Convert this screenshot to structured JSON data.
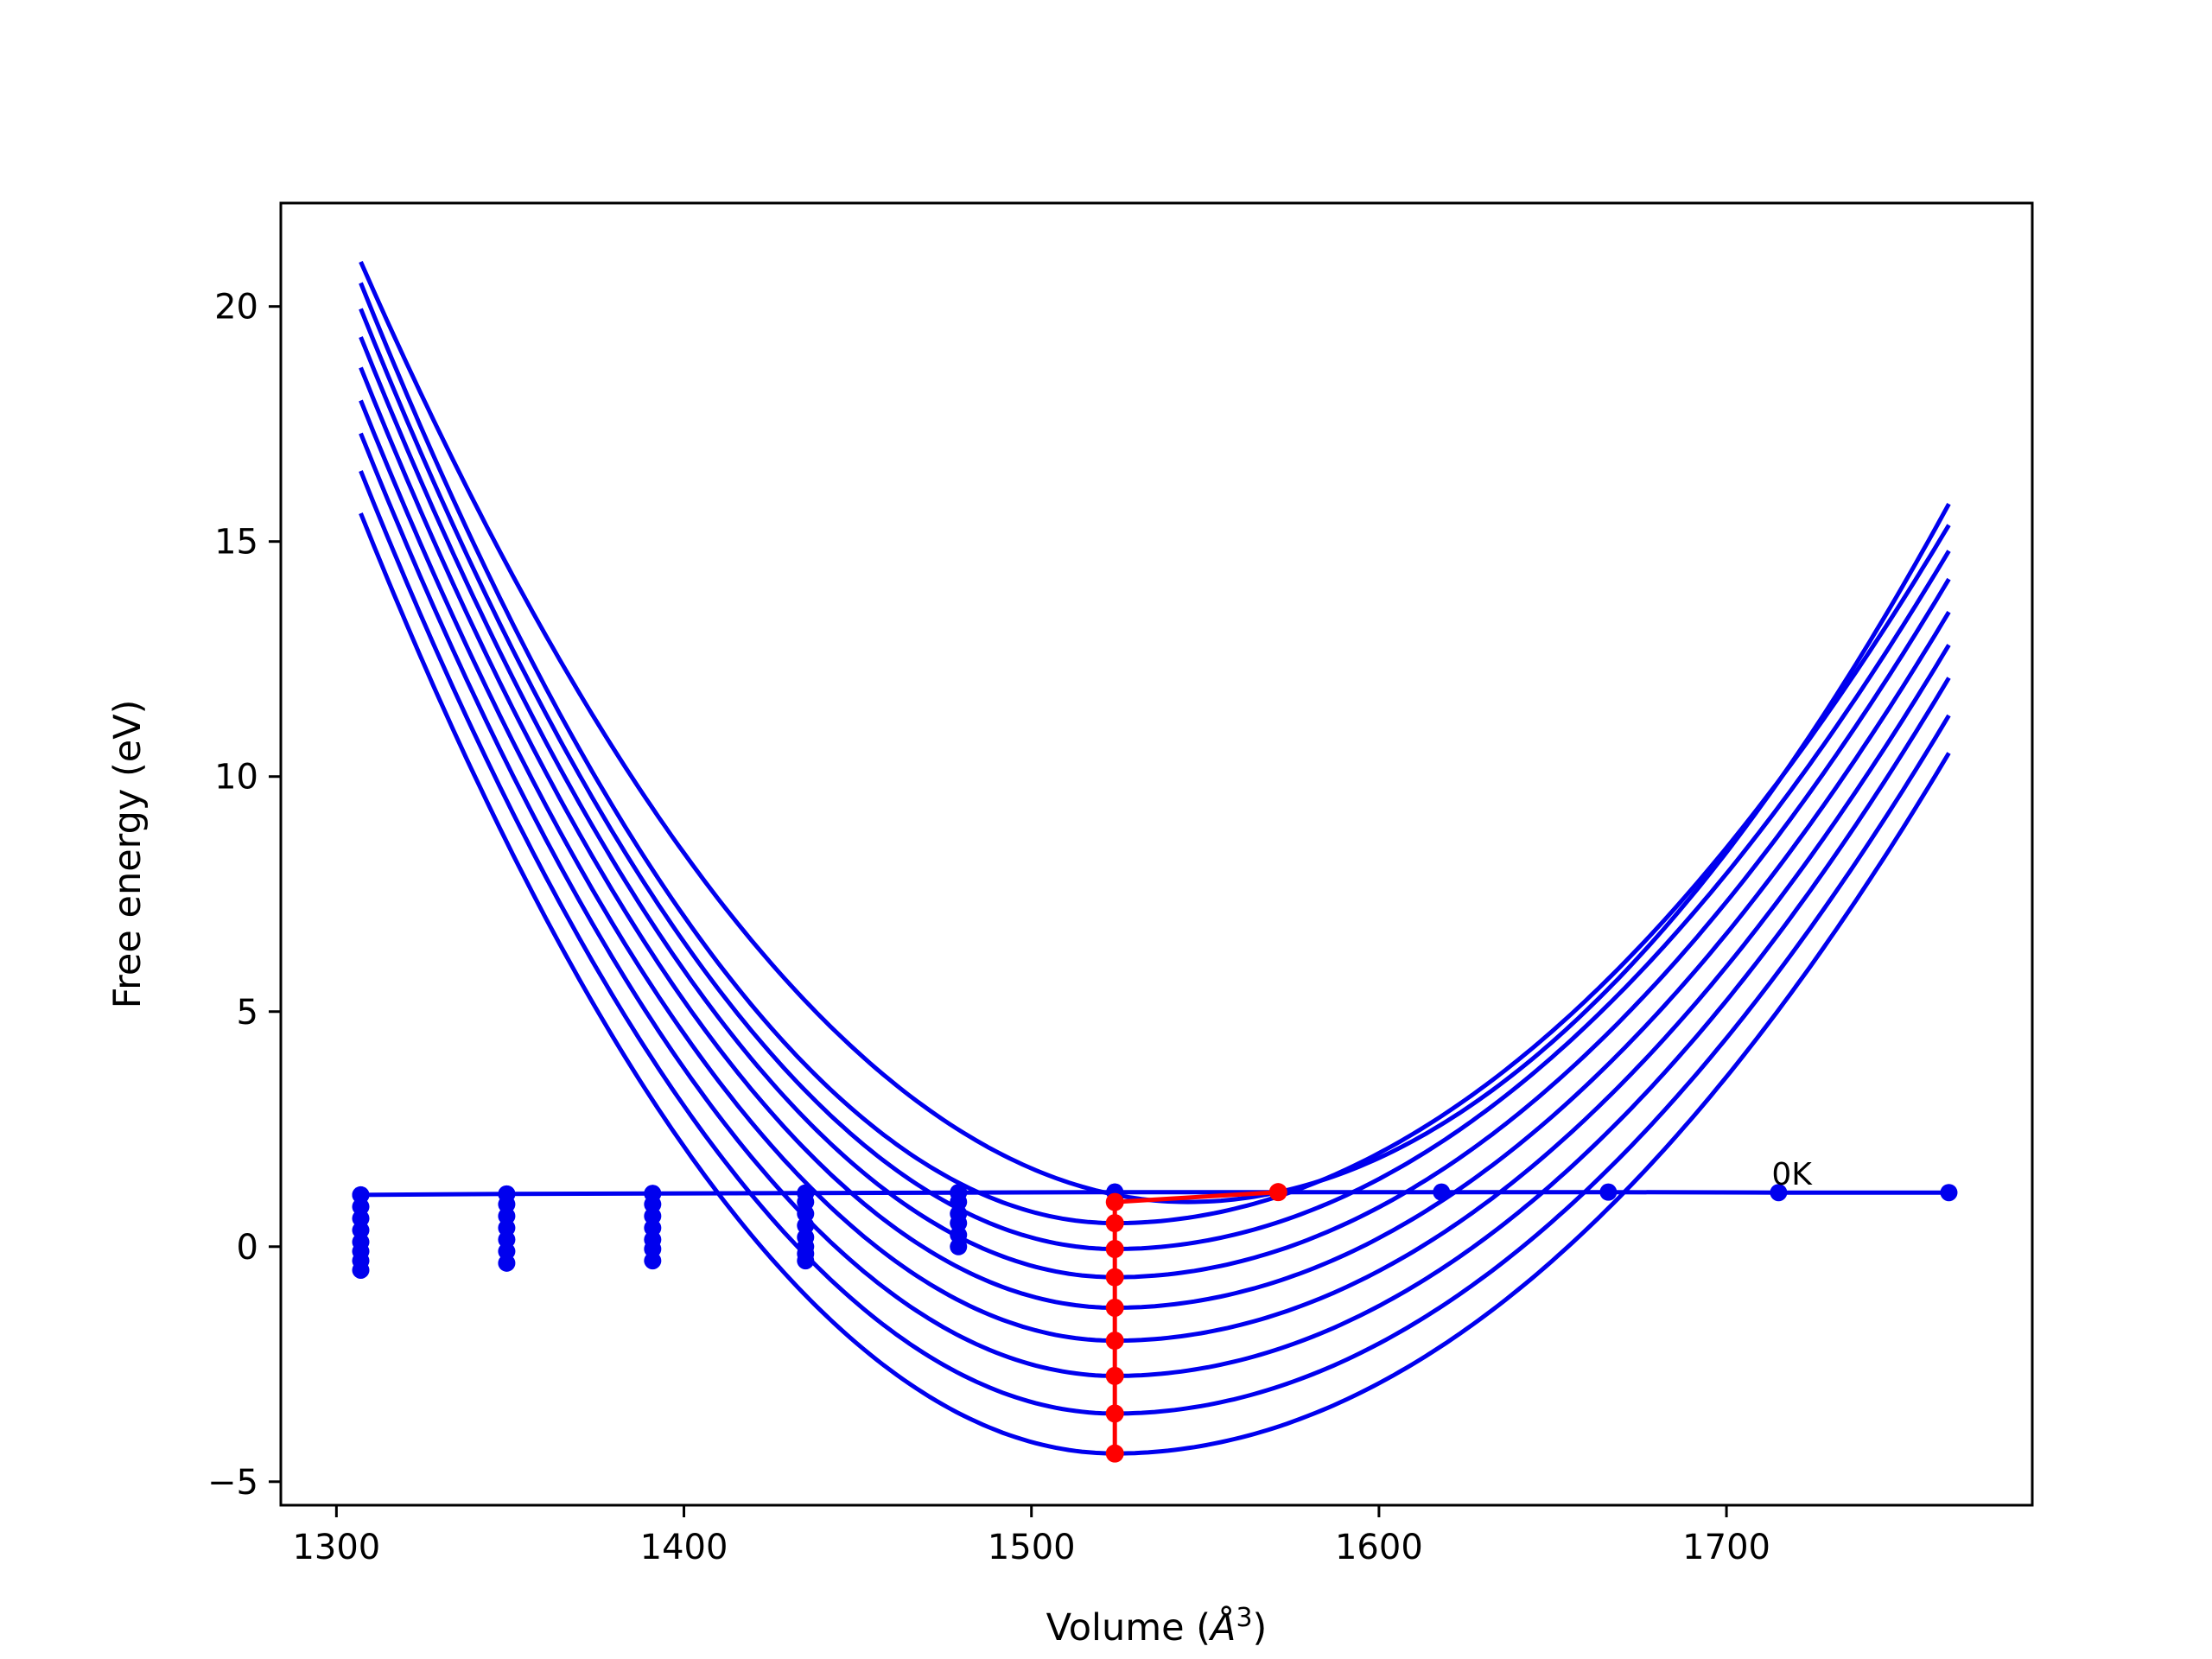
{
  "chart_data": {
    "type": "line",
    "title": "",
    "xlabel": "Volume (",
    "xlabel_symbol": "Å",
    "xlabel_exp": "3",
    "xlabel_close": ")",
    "ylabel": "Free energy (eV)",
    "xlim": [
      1284,
      1788
    ],
    "ylim": [
      -5.5,
      22.2
    ],
    "xticks": [
      1300,
      1400,
      1500,
      1600,
      1700
    ],
    "xtick_labels": [
      "1300",
      "1400",
      "1500",
      "1600",
      "1700"
    ],
    "yticks": [
      -5,
      0,
      5,
      10,
      15,
      20
    ],
    "ytick_labels": [
      "−5",
      "0",
      "5",
      "10",
      "15",
      "20"
    ],
    "grid": false,
    "legend": null,
    "colors": {
      "curves": "#0000ee",
      "red_path": "#ff0000",
      "axes": "#000000"
    },
    "annotations": [
      {
        "text": "0K",
        "x": 1713,
        "y": 1.25
      }
    ],
    "curves_x_range": [
      1307,
      1764
    ],
    "series": [
      {
        "min_x": 1524,
        "min_y": -4.4,
        "left_y": 15.6,
        "right_y": 10.5
      },
      {
        "min_x": 1524,
        "min_y": -3.55,
        "left_y": 16.5,
        "right_y": 11.3
      },
      {
        "min_x": 1524,
        "min_y": -2.75,
        "left_y": 17.3,
        "right_y": 12.1
      },
      {
        "min_x": 1524,
        "min_y": -2.0,
        "left_y": 18.0,
        "right_y": 12.8
      },
      {
        "min_x": 1524,
        "min_y": -1.3,
        "left_y": 18.7,
        "right_y": 13.5
      },
      {
        "min_x": 1524,
        "min_y": -0.65,
        "left_y": 19.35,
        "right_y": 14.2
      },
      {
        "min_x": 1524,
        "min_y": -0.05,
        "left_y": 19.95,
        "right_y": 14.8
      },
      {
        "min_x": 1524,
        "min_y": 0.5,
        "left_y": 20.5,
        "right_y": 15.35
      },
      {
        "min_x": 1545,
        "min_y": 0.95,
        "left_y": 20.95,
        "right_y": 15.8
      }
    ],
    "horizontal_line": {
      "x": [
        1307,
        1349,
        1391,
        1435,
        1479,
        1524,
        1571,
        1618,
        1666,
        1715,
        1764
      ],
      "y": [
        1.1,
        1.12,
        1.13,
        1.14,
        1.15,
        1.16,
        1.16,
        1.16,
        1.16,
        1.15,
        1.15
      ]
    },
    "dot_columns": [
      {
        "x": 1307,
        "y": [
          1.1,
          0.85,
          0.6,
          0.35,
          0.1,
          -0.1,
          -0.3,
          -0.5
        ]
      },
      {
        "x": 1349,
        "y": [
          1.12,
          0.9,
          0.65,
          0.4,
          0.15,
          -0.1,
          -0.35
        ]
      },
      {
        "x": 1391,
        "y": [
          1.13,
          0.9,
          0.65,
          0.4,
          0.15,
          -0.05,
          -0.3
        ]
      },
      {
        "x": 1435,
        "y": [
          1.14,
          0.95,
          0.7,
          0.45,
          0.2,
          0.0,
          -0.15,
          -0.3
        ]
      },
      {
        "x": 1479,
        "y": [
          1.15,
          0.95,
          0.7,
          0.5,
          0.25,
          0.0
        ]
      },
      {
        "x": 1524,
        "y": [
          1.16
        ]
      }
    ],
    "red_path": {
      "x": [
        1571,
        1524,
        1524,
        1524,
        1524,
        1524,
        1524,
        1524,
        1524,
        1524
      ],
      "y": [
        1.16,
        0.95,
        0.5,
        -0.05,
        -0.65,
        -1.3,
        -2.0,
        -2.75,
        -3.55,
        -4.4
      ]
    }
  }
}
